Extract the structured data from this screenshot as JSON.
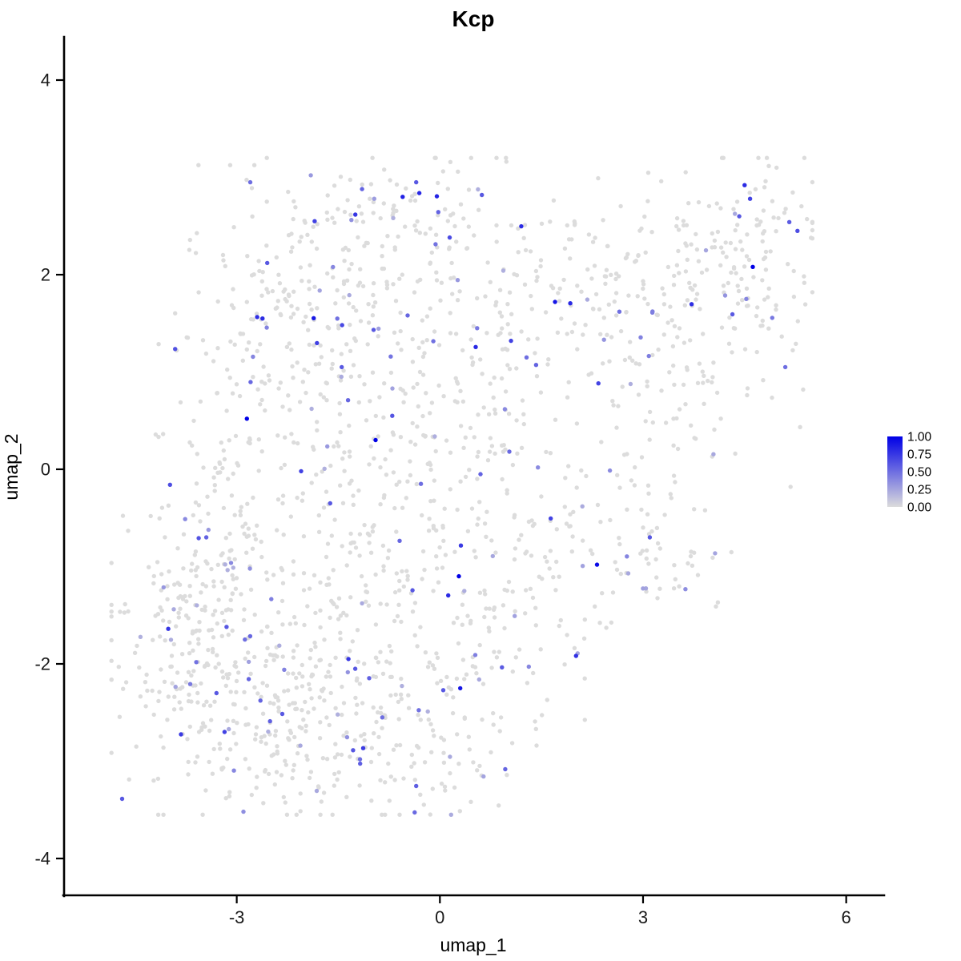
{
  "page": {
    "background": "#FFFFFF"
  },
  "chart_data": {
    "type": "scatter",
    "title": "Kcp",
    "xlabel": "umap_1",
    "ylabel": "umap_2",
    "xlim": [
      -5.2,
      6.55
    ],
    "ylim": [
      -4.35,
      4.4
    ],
    "x_ticks": [
      -3,
      0,
      3,
      6
    ],
    "y_ticks": [
      -4,
      -2,
      0,
      2,
      4
    ],
    "grid": false,
    "legend_position": "right",
    "point_color_low": "#DCDCDC",
    "point_color_high": "#0000E6",
    "legend": {
      "tick_labels": [
        "1.00",
        "0.75",
        "0.50",
        "0.25",
        "0.00"
      ],
      "tick_values": [
        1.0,
        0.75,
        0.5,
        0.25,
        0.0
      ]
    },
    "seed": 20240613,
    "expressing_fraction": 0.07,
    "x_range": [
      -4.85,
      5.5
    ],
    "y_range": [
      -3.55,
      3.2
    ],
    "clusters": [
      {
        "cx": -2.9,
        "cy": -2.3,
        "rx": 0.85,
        "ry": 0.55,
        "n": 200
      },
      {
        "cx": -3.6,
        "cy": -1.55,
        "rx": 0.5,
        "ry": 0.5,
        "n": 75
      },
      {
        "cx": -2.0,
        "cy": -2.85,
        "rx": 0.7,
        "ry": 0.38,
        "n": 75
      },
      {
        "cx": -1.15,
        "cy": -2.3,
        "rx": 0.75,
        "ry": 0.55,
        "n": 90
      },
      {
        "cx": -3.2,
        "cy": -0.6,
        "rx": 0.55,
        "ry": 0.6,
        "n": 80
      },
      {
        "cx": -2.2,
        "cy": 0.3,
        "rx": 0.85,
        "ry": 0.8,
        "n": 120
      },
      {
        "cx": -0.85,
        "cy": -0.9,
        "rx": 0.85,
        "ry": 0.7,
        "n": 100
      },
      {
        "cx": -0.3,
        "cy": 0.1,
        "rx": 0.8,
        "ry": 0.75,
        "n": 90
      },
      {
        "cx": -2.3,
        "cy": 1.7,
        "rx": 0.7,
        "ry": 0.62,
        "n": 120
      },
      {
        "cx": -1.15,
        "cy": 1.4,
        "rx": 0.7,
        "ry": 0.6,
        "n": 80
      },
      {
        "cx": -0.9,
        "cy": 2.6,
        "rx": 0.85,
        "ry": 0.34,
        "n": 80
      },
      {
        "cx": 0.2,
        "cy": 2.25,
        "rx": 0.7,
        "ry": 0.5,
        "n": 55
      },
      {
        "cx": 0.85,
        "cy": 0.9,
        "rx": 0.8,
        "ry": 0.75,
        "n": 65
      },
      {
        "cx": 1.6,
        "cy": 1.6,
        "rx": 0.7,
        "ry": 0.5,
        "n": 55
      },
      {
        "cx": 2.6,
        "cy": 2.0,
        "rx": 0.8,
        "ry": 0.6,
        "n": 60
      },
      {
        "cx": 3.6,
        "cy": 1.9,
        "rx": 0.7,
        "ry": 0.6,
        "n": 65
      },
      {
        "cx": 4.7,
        "cy": 2.4,
        "rx": 0.52,
        "ry": 0.45,
        "n": 90
      },
      {
        "cx": 4.3,
        "cy": 1.2,
        "rx": 0.6,
        "ry": 0.6,
        "n": 50
      },
      {
        "cx": 3.0,
        "cy": 0.2,
        "rx": 0.7,
        "ry": 0.7,
        "n": 55
      },
      {
        "cx": 2.2,
        "cy": -0.7,
        "rx": 0.7,
        "ry": 0.5,
        "n": 50
      },
      {
        "cx": 1.2,
        "cy": -1.5,
        "rx": 0.8,
        "ry": 0.6,
        "n": 55
      },
      {
        "cx": 0.3,
        "cy": -2.4,
        "rx": 0.8,
        "ry": 0.5,
        "n": 70
      },
      {
        "cx": -4.2,
        "cy": -1.8,
        "rx": 0.42,
        "ry": 0.6,
        "n": 45
      },
      {
        "cx": 1.0,
        "cy": 0.0,
        "rx": 0.7,
        "ry": 0.7,
        "n": 45
      },
      {
        "cx": 3.3,
        "cy": -0.9,
        "rx": 0.5,
        "ry": 0.4,
        "n": 25
      },
      {
        "cx": -0.2,
        "cy": -3.05,
        "rx": 0.6,
        "ry": 0.3,
        "n": 40
      }
    ],
    "highlight_points": [
      {
        "x": -2.85,
        "y": 0.52,
        "value": 1.0
      },
      {
        "x": -0.95,
        "y": 0.3,
        "value": 1.0
      },
      {
        "x": 0.28,
        "y": -1.1,
        "value": 1.0
      },
      {
        "x": 2.32,
        "y": -0.98,
        "value": 0.95
      },
      {
        "x": 4.62,
        "y": 2.08,
        "value": 1.0
      },
      {
        "x": 1.7,
        "y": 1.72,
        "value": 0.9
      },
      {
        "x": 0.3,
        "y": -2.25,
        "value": 0.9
      },
      {
        "x": 0.05,
        "y": -2.27,
        "value": 0.6
      },
      {
        "x": 5.28,
        "y": 2.45,
        "value": 0.65
      },
      {
        "x": 4.5,
        "y": 2.92,
        "value": 0.8
      },
      {
        "x": 4.58,
        "y": 2.78,
        "value": 0.7
      },
      {
        "x": 4.42,
        "y": 2.6,
        "value": 0.6
      },
      {
        "x": -2.62,
        "y": 1.55,
        "value": 0.8
      },
      {
        "x": -2.55,
        "y": 2.12,
        "value": 0.6
      },
      {
        "x": -0.55,
        "y": 2.8,
        "value": 0.85
      },
      {
        "x": -1.85,
        "y": 2.55,
        "value": 0.7
      },
      {
        "x": 0.62,
        "y": 2.82,
        "value": 0.6
      },
      {
        "x": -2.05,
        "y": -0.02,
        "value": 0.7
      },
      {
        "x": -1.62,
        "y": -0.35,
        "value": 0.6
      },
      {
        "x": -3.45,
        "y": -0.7,
        "value": 0.55
      },
      {
        "x": -3.15,
        "y": -1.62,
        "value": 0.6
      },
      {
        "x": -2.88,
        "y": -1.75,
        "value": 0.5
      },
      {
        "x": -3.3,
        "y": -2.3,
        "value": 0.6
      },
      {
        "x": -3.18,
        "y": -2.7,
        "value": 0.7
      },
      {
        "x": -1.25,
        "y": -2.05,
        "value": 0.6
      },
      {
        "x": -0.85,
        "y": -2.55,
        "value": 0.5
      },
      {
        "x": 1.05,
        "y": 1.32,
        "value": 0.7
      },
      {
        "x": 1.28,
        "y": 1.15,
        "value": 0.5
      },
      {
        "x": 0.55,
        "y": 1.45,
        "value": 0.45
      },
      {
        "x": 2.65,
        "y": 1.62,
        "value": 0.5
      },
      {
        "x": 3.1,
        "y": -0.7,
        "value": 0.6
      },
      {
        "x": 5.1,
        "y": 1.05,
        "value": 0.5
      },
      {
        "x": -1.45,
        "y": 1.05,
        "value": 0.6
      },
      {
        "x": -2.8,
        "y": 2.95,
        "value": 0.5
      },
      {
        "x": -1.15,
        "y": 2.88,
        "value": 0.55
      },
      {
        "x": -0.35,
        "y": 2.95,
        "value": 0.6
      },
      {
        "x": 0.6,
        "y": -0.05,
        "value": 0.55
      },
      {
        "x": -0.28,
        "y": -0.15,
        "value": 0.5
      },
      {
        "x": -1.35,
        "y": -1.95,
        "value": 0.75
      },
      {
        "x": -1.18,
        "y": -2.98,
        "value": 0.5
      }
    ]
  }
}
